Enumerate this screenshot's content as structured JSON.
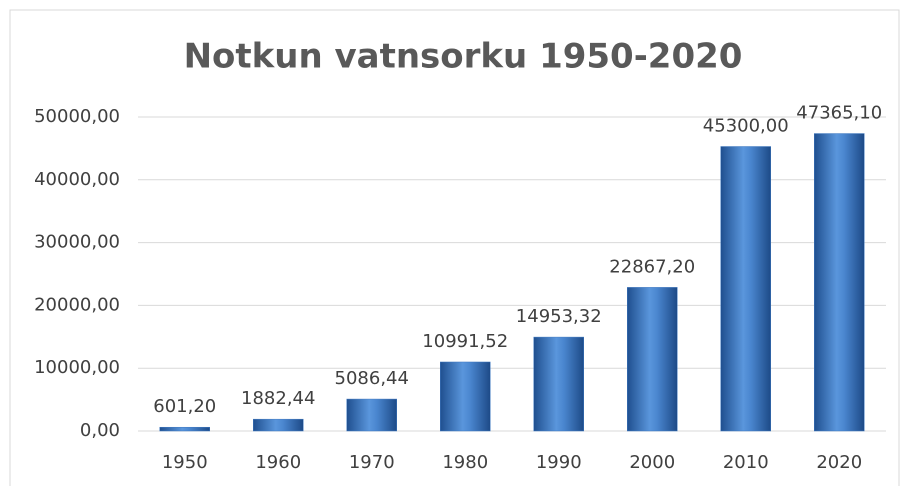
{
  "chart_data": {
    "type": "bar",
    "title": "Notkun vatnsorku 1950-2020",
    "categories": [
      "1950",
      "1960",
      "1970",
      "1980",
      "1990",
      "2000",
      "2010",
      "2020"
    ],
    "values": [
      601.2,
      1882.44,
      5086.44,
      10991.52,
      14953.32,
      22867.2,
      45300,
      47365.1
    ],
    "value_labels": [
      "601,20",
      "1882,44",
      "5086,44",
      "10991,52",
      "14953,32",
      "22867,20",
      "45300,00",
      "47365,10"
    ],
    "color": "#3f78c0",
    "ylim": [
      0,
      50000
    ],
    "yticks": [
      {
        "value": 0,
        "label": "0,00"
      },
      {
        "value": 10000,
        "label": "10000,00"
      },
      {
        "value": 20000,
        "label": "20000,00"
      },
      {
        "value": 30000,
        "label": "30000,00"
      },
      {
        "value": 40000,
        "label": "40000,00"
      },
      {
        "value": 50000,
        "label": "50000,00"
      }
    ],
    "grid": true
  }
}
